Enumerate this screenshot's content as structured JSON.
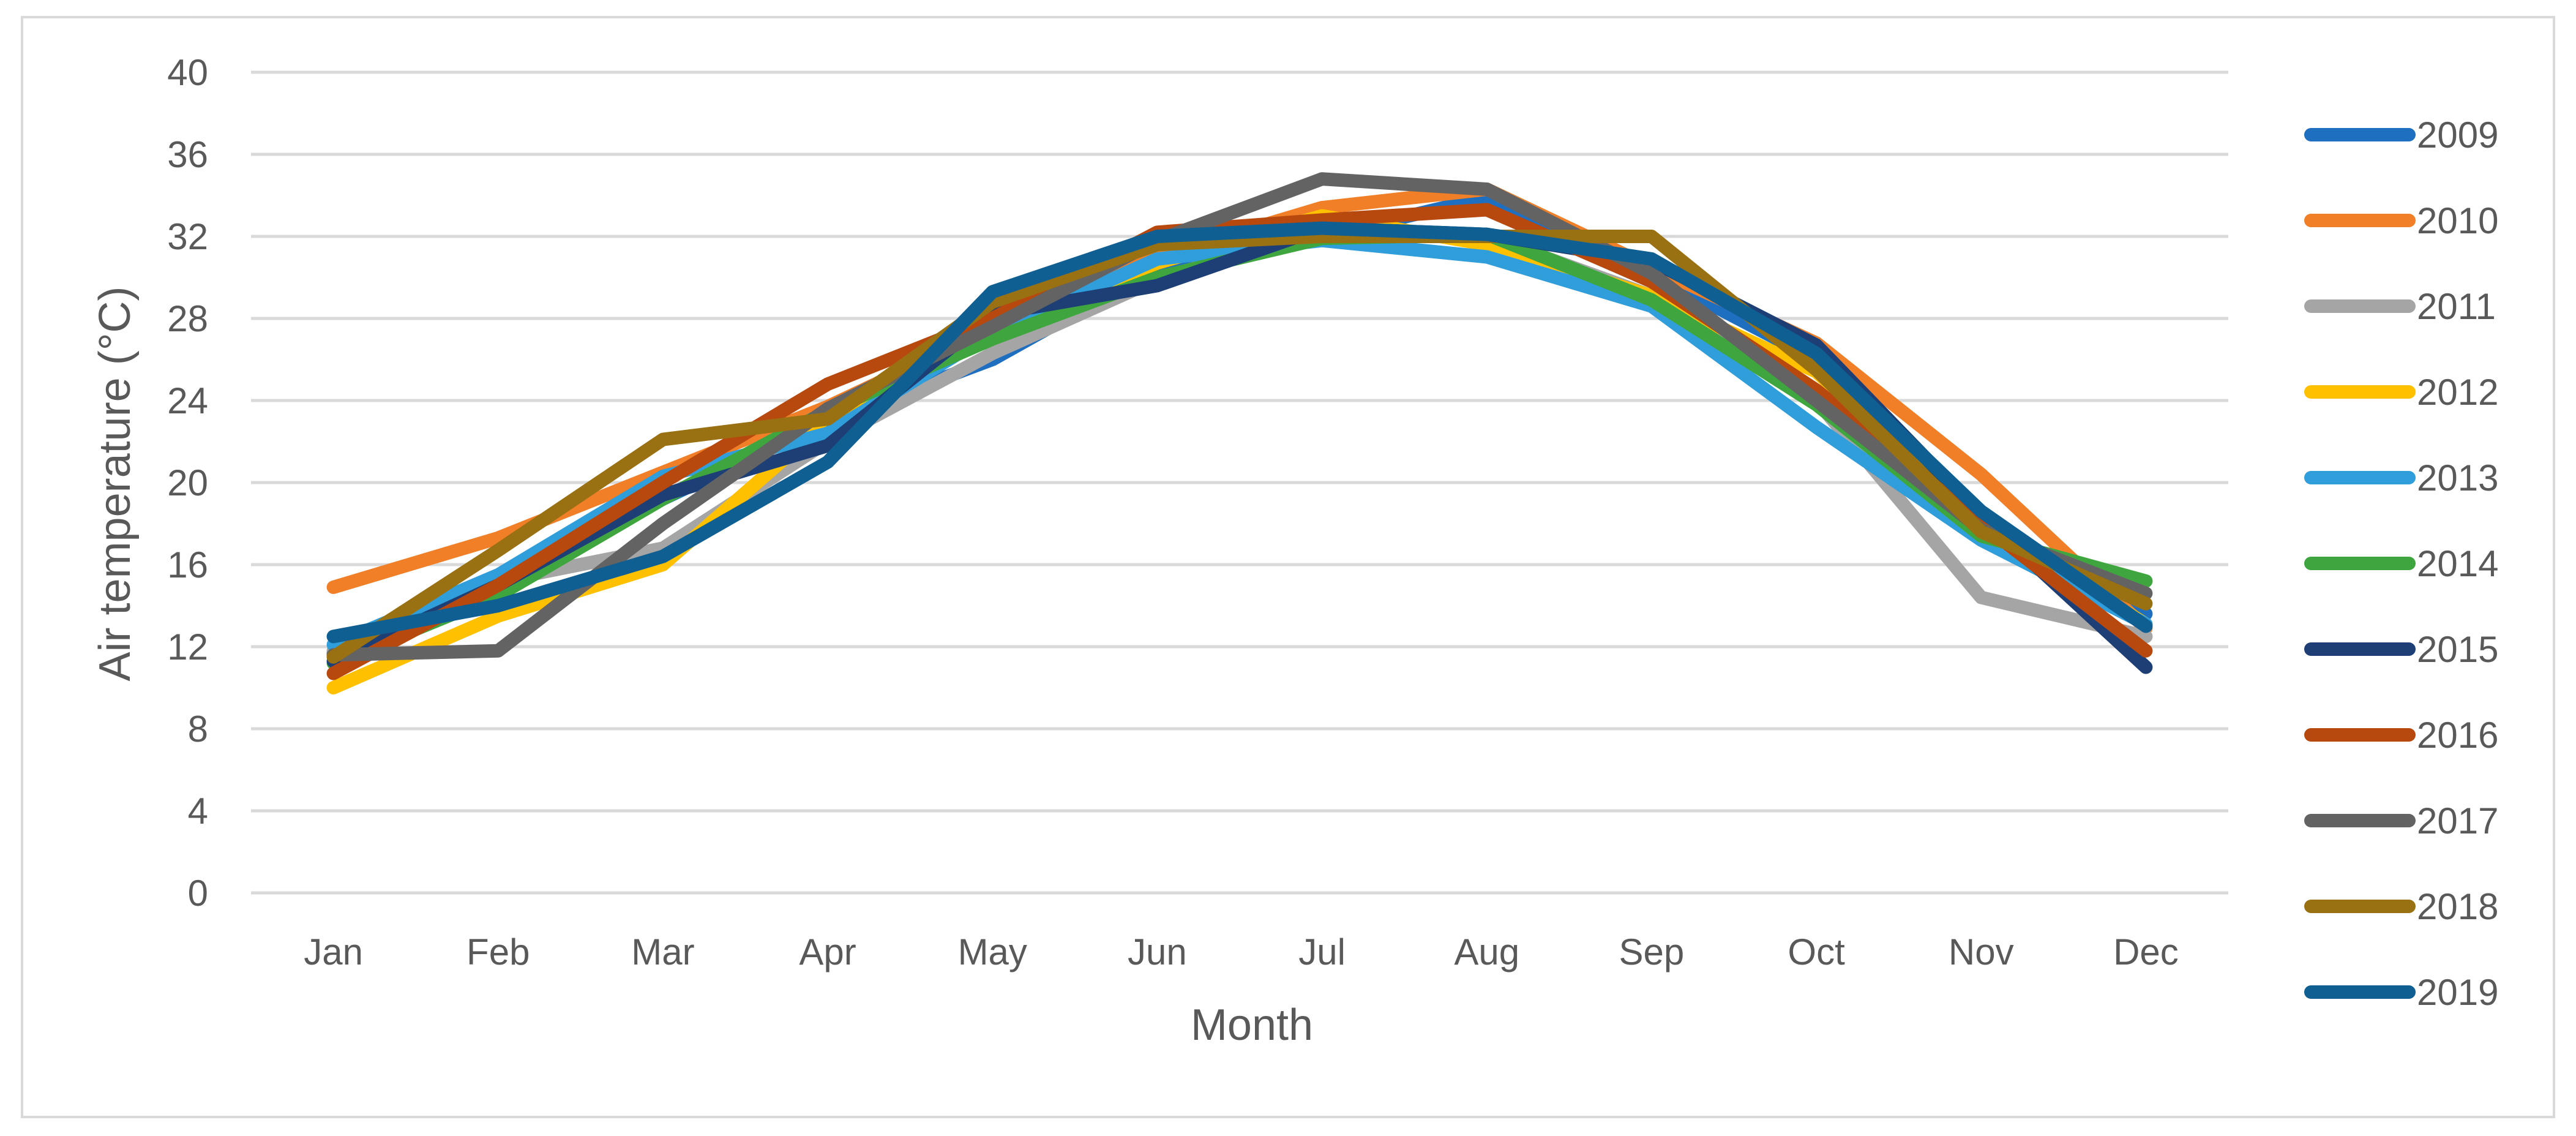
{
  "chart_data": {
    "type": "line",
    "title": "",
    "xlabel": "Month",
    "ylabel": "Air temperature (°C)",
    "ylim": [
      0,
      40
    ],
    "yticks": [
      0,
      4,
      8,
      12,
      16,
      20,
      24,
      28,
      32,
      36,
      40
    ],
    "ytick_labels": [
      "0",
      "4",
      "8",
      "12",
      "16",
      "20",
      "24",
      "28",
      "32",
      "36",
      "40"
    ],
    "grid": true,
    "legend_position": "right",
    "categories": [
      "Jan",
      "Feb",
      "Mar",
      "Apr",
      "May",
      "Jun",
      "Jul",
      "Aug",
      "Sep",
      "Oct",
      "Nov",
      "Dec"
    ],
    "series": [
      {
        "name": "2009",
        "color": "#1f6fc1",
        "values": [
          11.7,
          15.0,
          19.2,
          23.0,
          26.0,
          30.5,
          32.0,
          33.9,
          30.2,
          26.0,
          18.0,
          13.6
        ]
      },
      {
        "name": "2010",
        "color": "#f07f27",
        "values": [
          14.9,
          17.3,
          20.5,
          23.7,
          27.5,
          31.0,
          33.4,
          34.3,
          30.5,
          26.8,
          20.4,
          12.9
        ]
      },
      {
        "name": "2011",
        "color": "#a5a5a5",
        "values": [
          11.8,
          15.2,
          16.8,
          22.0,
          26.3,
          29.9,
          32.3,
          32.0,
          29.1,
          24.0,
          14.4,
          12.5
        ]
      },
      {
        "name": "2012",
        "color": "#ffc000",
        "values": [
          10.0,
          13.5,
          16.0,
          23.0,
          27.5,
          30.7,
          33.0,
          31.6,
          29.1,
          25.4,
          18.0,
          13.1
        ]
      },
      {
        "name": "2013",
        "color": "#2f9edb",
        "values": [
          12.1,
          15.5,
          20.3,
          22.4,
          27.3,
          30.9,
          31.8,
          31.0,
          28.6,
          22.7,
          17.2,
          13.1
        ]
      },
      {
        "name": "2014",
        "color": "#3fa63f",
        "values": [
          11.2,
          14.5,
          19.2,
          23.5,
          27.0,
          30.0,
          31.9,
          32.1,
          28.9,
          23.8,
          17.4,
          15.2
        ]
      },
      {
        "name": "2015",
        "color": "#1d3f75",
        "values": [
          11.3,
          15.0,
          19.4,
          21.8,
          28.2,
          29.6,
          32.4,
          32.1,
          30.8,
          26.7,
          18.4,
          11.0
        ]
      },
      {
        "name": "2016",
        "color": "#b8490e",
        "values": [
          10.7,
          15.0,
          20.0,
          24.8,
          28.0,
          32.2,
          32.8,
          33.3,
          29.8,
          24.5,
          18.0,
          11.8
        ]
      },
      {
        "name": "2017",
        "color": "#636363",
        "values": [
          11.6,
          11.8,
          18.0,
          23.6,
          27.6,
          31.8,
          34.8,
          34.3,
          30.2,
          24.0,
          17.7,
          14.6
        ]
      },
      {
        "name": "2018",
        "color": "#9a7112",
        "values": [
          11.5,
          16.7,
          22.1,
          23.1,
          28.8,
          31.6,
          32.0,
          32.0,
          32.0,
          25.5,
          17.6,
          14.1
        ]
      },
      {
        "name": "2019",
        "color": "#0f5f93",
        "values": [
          12.5,
          14.0,
          16.4,
          21.0,
          29.3,
          32.0,
          32.4,
          32.1,
          30.9,
          26.3,
          18.6,
          13.0
        ]
      }
    ]
  }
}
